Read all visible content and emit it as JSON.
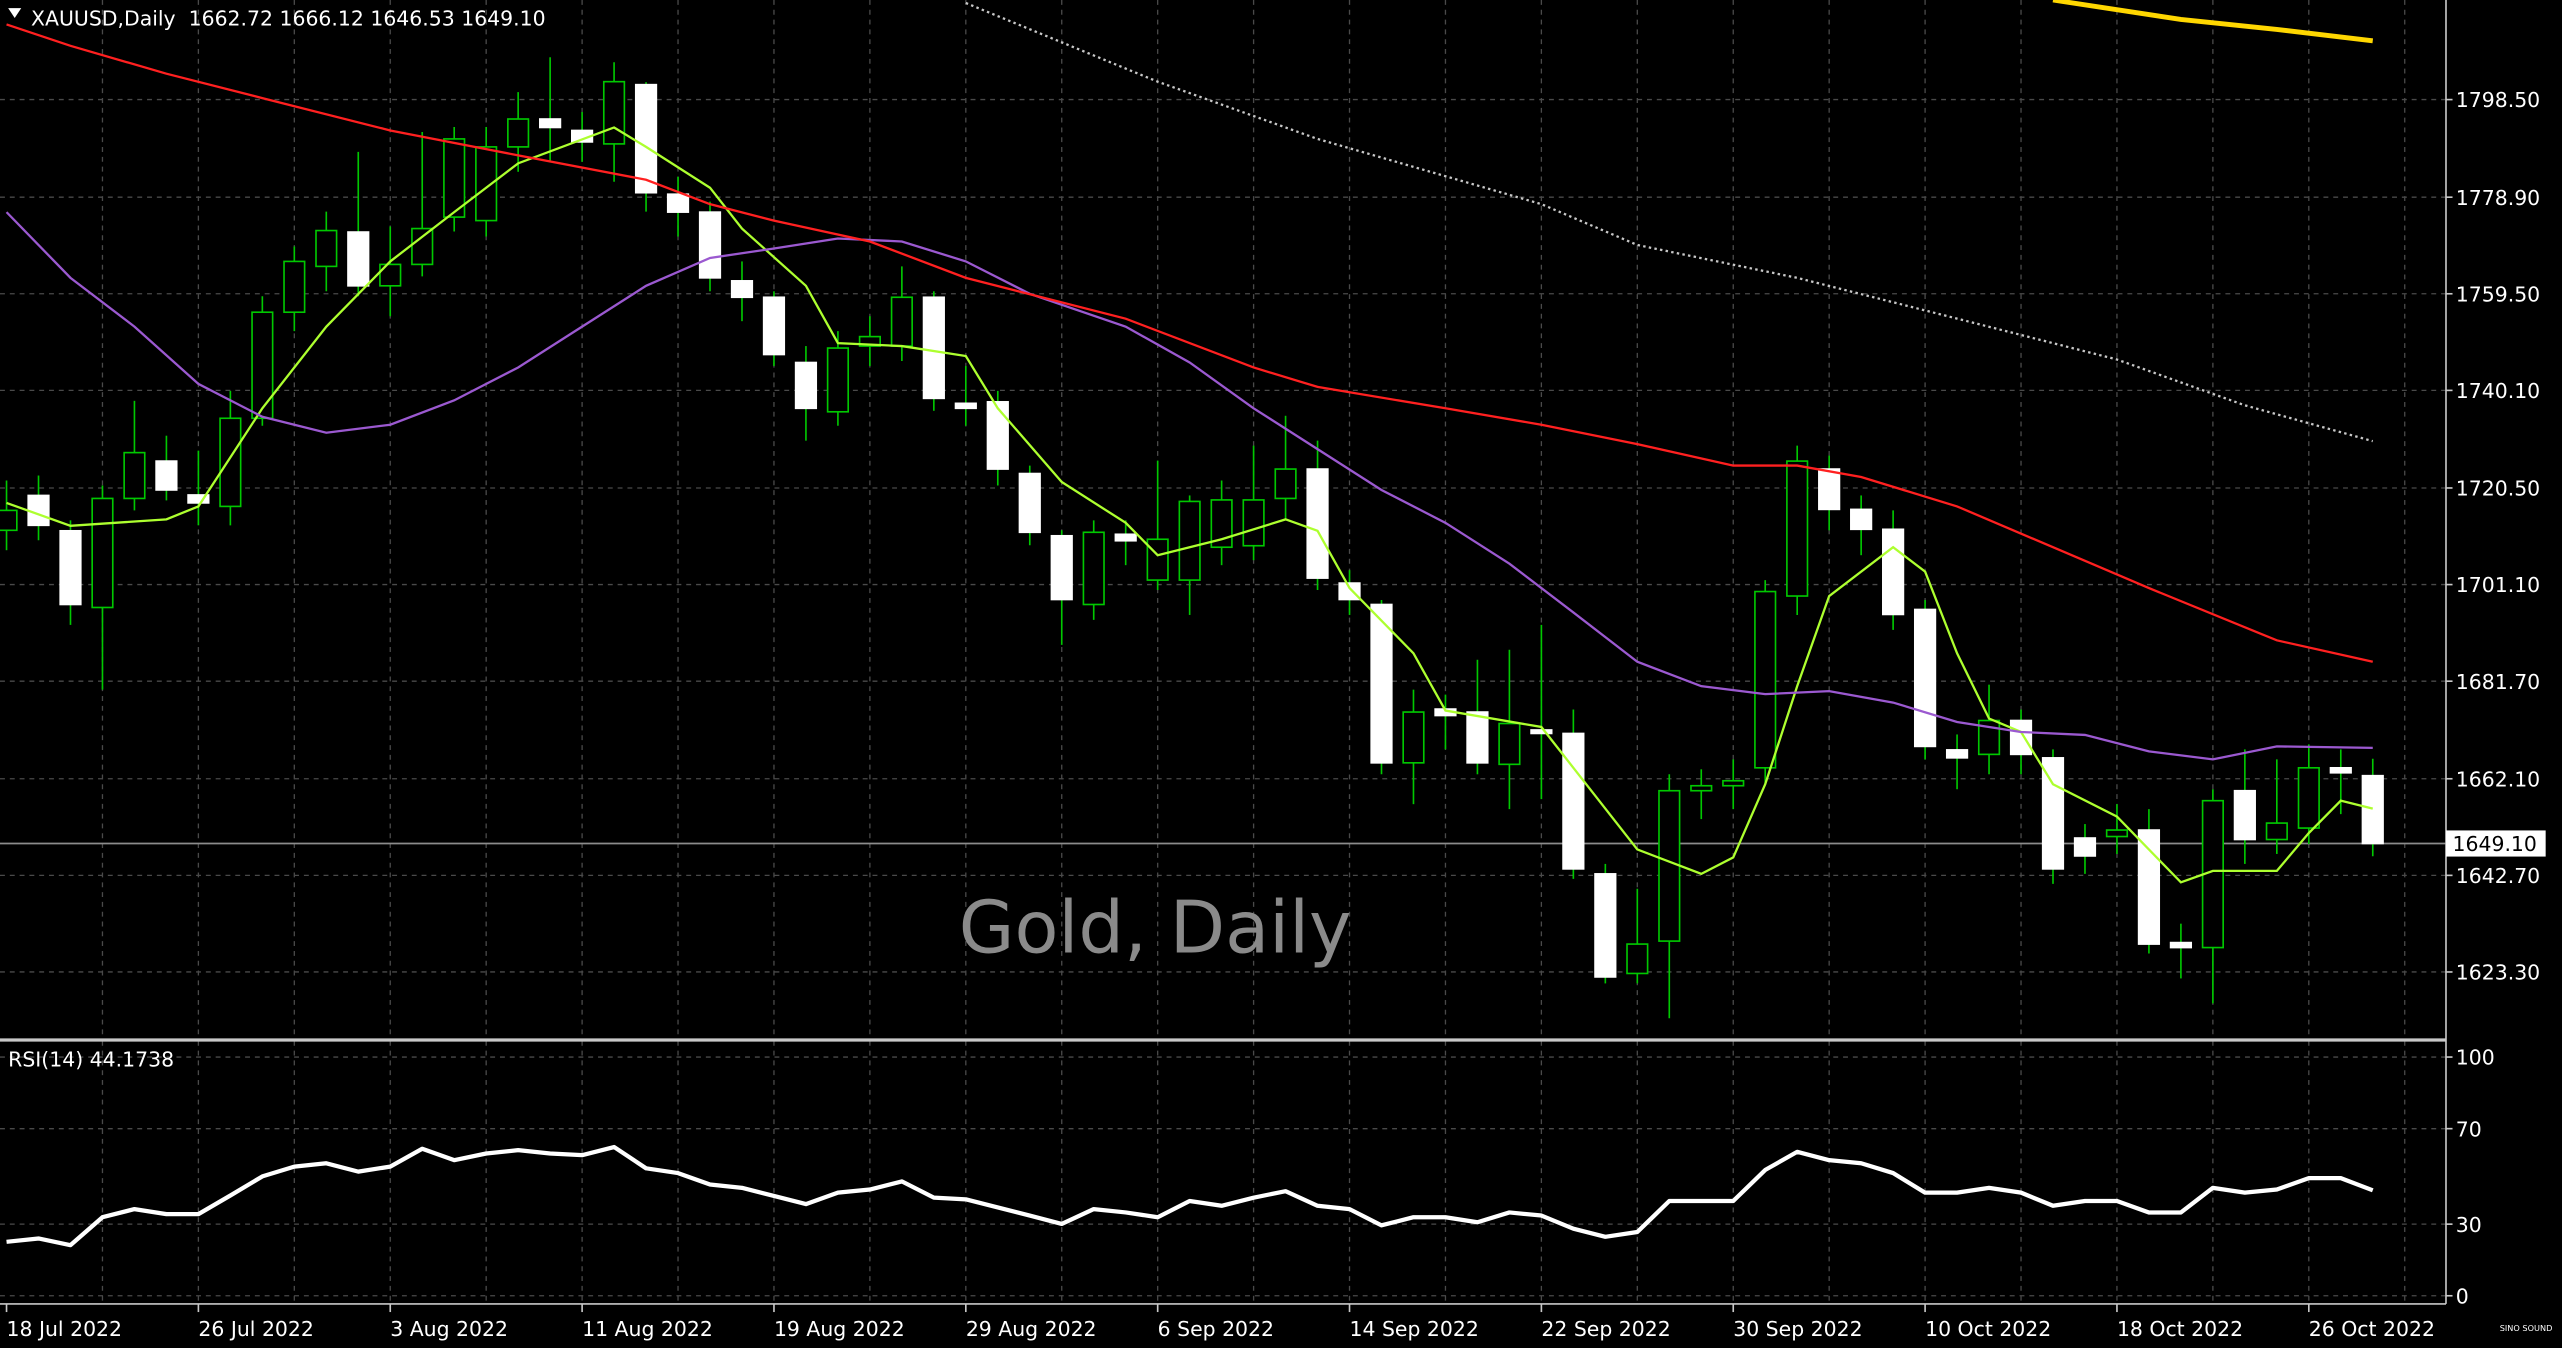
{
  "chart_data": [
    {
      "type": "candlestick",
      "title": "XAUUSD,Daily  1662.72 1666.12 1646.53 1649.10",
      "watermark": "Gold, Daily",
      "categories": [
        "18 Jul 2022",
        null,
        null,
        null,
        null,
        null,
        "26 Jul 2022",
        null,
        null,
        null,
        null,
        null,
        "3 Aug 2022",
        null,
        null,
        null,
        null,
        null,
        "11 Aug 2022",
        null,
        null,
        null,
        null,
        null,
        "19 Aug 2022",
        null,
        null,
        null,
        null,
        null,
        "29 Aug 2022",
        null,
        null,
        null,
        null,
        null,
        "6 Sep 2022",
        null,
        null,
        null,
        null,
        null,
        "14 Sep 2022",
        null,
        null,
        null,
        null,
        null,
        "22 Sep 2022",
        null,
        null,
        null,
        null,
        null,
        "30 Sep 2022",
        null,
        null,
        null,
        null,
        null,
        "10 Oct 2022",
        null,
        null,
        null,
        null,
        null,
        "18 Oct 2022",
        null,
        null,
        null,
        null,
        null,
        "26 Oct 2022",
        null,
        null
      ],
      "open": [
        1712,
        1719,
        1711.9,
        1696.5,
        1718.4,
        1725.9,
        1719.1,
        1716.8,
        1734.5,
        1755.8,
        1765,
        1771.9,
        1761.1,
        1765.4,
        1774.9,
        1774.2,
        1789,
        1794.6,
        1792.3,
        1789.6,
        1801.5,
        1779.5,
        1775.9,
        1762.1,
        1758.8,
        1745.7,
        1735.8,
        1749,
        1749,
        1758.8,
        1737.5,
        1737.8,
        1723.4,
        1710.9,
        1697.1,
        1711.2,
        1702,
        1702,
        1708.6,
        1708.9,
        1718.4,
        1724.3,
        1701.4,
        1697.1,
        1665.3,
        1676.1,
        1675.5,
        1665,
        1671.9,
        1671.2,
        1643,
        1623,
        1629.5,
        1659.7,
        1660.7,
        1664.3,
        1698.8,
        1724.3,
        1716.2,
        1712.2,
        1696.1,
        1667.9,
        1667,
        1673.8,
        1666.3,
        1650.2,
        1650.5,
        1651.8,
        1629.2,
        1628.2,
        1659.7,
        1649.9,
        1652.2,
        1664.3,
        1662.72
      ],
      "high": [
        1722,
        1723,
        1714,
        1721,
        1738,
        1731,
        1728,
        1740,
        1759,
        1769,
        1776,
        1788,
        1773,
        1792,
        1793,
        1793,
        1800,
        1807,
        1796,
        1806,
        1802,
        1783,
        1778,
        1766,
        1760,
        1749,
        1752,
        1755,
        1765,
        1760,
        1745,
        1740,
        1725,
        1712,
        1714,
        1714,
        1726,
        1719,
        1722,
        1729,
        1735,
        1730,
        1704,
        1698,
        1680,
        1679,
        1686,
        1688,
        1693,
        1676,
        1645,
        1640,
        1663,
        1664,
        1666,
        1702,
        1729,
        1727,
        1719,
        1716,
        1698,
        1671,
        1681,
        1676,
        1668,
        1653,
        1657,
        1656,
        1633,
        1660,
        1668,
        1666,
        1669,
        1668,
        1666.12
      ],
      "low": [
        1708,
        1710,
        1693,
        1680,
        1716,
        1718,
        1713,
        1713,
        1733,
        1752,
        1760,
        1759,
        1755,
        1763,
        1772,
        1771,
        1784,
        1786,
        1786,
        1782,
        1776,
        1771,
        1760,
        1754,
        1745,
        1730,
        1733,
        1745,
        1746,
        1736,
        1733,
        1721,
        1709,
        1689,
        1694,
        1705,
        1700,
        1695,
        1705,
        1706,
        1714,
        1700,
        1695,
        1663,
        1657,
        1668,
        1663,
        1656,
        1658,
        1642,
        1621,
        1621,
        1614,
        1654,
        1656,
        1661,
        1695,
        1712,
        1707,
        1692,
        1666,
        1660,
        1663,
        1663,
        1641,
        1643,
        1647,
        1627,
        1622,
        1617,
        1645,
        1647,
        1649,
        1655,
        1646.53
      ],
      "close": [
        1716,
        1713,
        1697.1,
        1718.4,
        1727.6,
        1720.1,
        1717.5,
        1734.5,
        1755.8,
        1766,
        1772.2,
        1761.1,
        1765.4,
        1772.6,
        1790.6,
        1789,
        1794.6,
        1792.9,
        1790,
        1802.1,
        1779.8,
        1775.9,
        1762.7,
        1758.8,
        1747.3,
        1736.5,
        1748.6,
        1750.9,
        1758.8,
        1738.5,
        1736.5,
        1724.3,
        1711.6,
        1698.1,
        1711.6,
        1709.9,
        1710.2,
        1717.8,
        1718.1,
        1718.1,
        1724.3,
        1702.4,
        1698.1,
        1665.3,
        1675.5,
        1674.8,
        1665.3,
        1673.2,
        1671.2,
        1644,
        1622.3,
        1628.9,
        1659.7,
        1660.7,
        1661.7,
        1699.7,
        1725.9,
        1716.2,
        1712.2,
        1695.1,
        1668.6,
        1666.3,
        1673.8,
        1667,
        1644,
        1646.6,
        1651.8,
        1628.9,
        1628.2,
        1657.7,
        1649.9,
        1653.2,
        1664.3,
        1663.3,
        1649.1
      ],
      "up_color": "#000000",
      "down_color": "#ffffff",
      "wick_color": "#00c800",
      "ylim": [
        1609.8,
        1818.5
      ],
      "yticks": [
        {
          "value": 1798.5,
          "label": "1798.50"
        },
        {
          "value": 1778.9,
          "label": "1778.90"
        },
        {
          "value": 1759.5,
          "label": "1759.50"
        },
        {
          "value": 1740.1,
          "label": "1740.10"
        },
        {
          "value": 1720.5,
          "label": "1720.50"
        },
        {
          "value": 1701.1,
          "label": "1701.10"
        },
        {
          "value": 1681.7,
          "label": "1681.70"
        },
        {
          "value": 1662.1,
          "label": "1662.10"
        },
        {
          "value": 1642.7,
          "label": "1642.70"
        },
        {
          "value": 1623.3,
          "label": "1623.30"
        }
      ],
      "grid": true,
      "price_line": {
        "value": 1649.1,
        "label": "1649.10"
      },
      "series": [
        {
          "color": "#adff2f",
          "x": [
            0,
            2,
            5,
            6,
            8,
            10,
            12,
            14,
            16,
            19,
            20,
            22,
            23,
            25,
            26,
            28,
            30,
            31,
            33,
            35,
            36,
            38,
            40,
            41,
            42,
            44,
            45,
            48,
            49,
            51,
            53,
            54,
            55,
            56,
            57,
            59,
            60,
            61,
            62,
            63,
            64,
            66,
            68,
            69,
            71,
            72,
            73,
            74
          ],
          "values": [
            1717.5,
            1712.9,
            1714.2,
            1716.8,
            1736.5,
            1752.9,
            1766,
            1775.9,
            1785.7,
            1792.9,
            1789,
            1780.8,
            1772.6,
            1761.1,
            1749.6,
            1749,
            1747,
            1736.5,
            1721.7,
            1713.5,
            1707,
            1710.2,
            1714.2,
            1711.9,
            1700.4,
            1687.3,
            1675.8,
            1672.5,
            1664.3,
            1647.9,
            1643,
            1646.3,
            1661,
            1680.7,
            1698.8,
            1708.6,
            1703.7,
            1687.3,
            1674.2,
            1671.5,
            1661,
            1654.5,
            1641.3,
            1643.6,
            1643.6,
            1651.2,
            1657.7,
            1656.1
          ]
        },
        {
          "color": "#9b59d0",
          "x": [
            0,
            2,
            4,
            6,
            8,
            10,
            12,
            14,
            16,
            18,
            20,
            22,
            24,
            26,
            28,
            30,
            32,
            35,
            37,
            39,
            41,
            43,
            45,
            47,
            49,
            51,
            53,
            55,
            57,
            59,
            61,
            63,
            65,
            67,
            69,
            71,
            74
          ],
          "values": [
            1775.9,
            1762.7,
            1752.9,
            1741.4,
            1734.8,
            1731.6,
            1733.2,
            1738.1,
            1744.7,
            1752.9,
            1761.1,
            1766.7,
            1768.6,
            1770.6,
            1770,
            1766,
            1759.5,
            1752.9,
            1745.7,
            1736.5,
            1728.3,
            1720.1,
            1713.5,
            1705.3,
            1695.5,
            1685.6,
            1680.7,
            1679.1,
            1679.7,
            1677.4,
            1673.5,
            1671.5,
            1670.9,
            1667.6,
            1666,
            1668.6,
            1668.3
          ]
        },
        {
          "color": "#ff2020",
          "x": [
            0,
            2,
            5,
            8,
            12,
            16,
            20,
            22,
            24,
            27,
            30,
            35,
            39,
            41,
            45,
            48,
            51,
            54,
            56,
            58,
            61,
            64,
            67,
            71,
            74
          ],
          "values": [
            1813.6,
            1809.3,
            1803.7,
            1798.8,
            1792.3,
            1787.3,
            1782.4,
            1777.5,
            1774.2,
            1770,
            1762.7,
            1754.5,
            1744.7,
            1740.8,
            1736.5,
            1733.2,
            1729.3,
            1725,
            1725,
            1722.7,
            1716.8,
            1708.6,
            1700.4,
            1689.9,
            1685.6
          ]
        },
        {
          "color": "#c8c8c8",
          "style": "dotted",
          "x": [
            30,
            36,
            41,
            48,
            51,
            56,
            59,
            66,
            70,
            74
          ],
          "values": [
            1817.9,
            1802.1,
            1790.6,
            1777.5,
            1769.3,
            1762.7,
            1757.8,
            1746.3,
            1737.1,
            1729.9
          ]
        },
        {
          "color": "#ffd700",
          "width": 3,
          "x": [
            64,
            68,
            71,
            74
          ],
          "values": [
            1818.5,
            1814.6,
            1812.6,
            1810.3
          ]
        }
      ]
    },
    {
      "type": "line",
      "title": "RSI(14) 44.1738",
      "color": "#ffffff",
      "values": [
        22.6,
        24,
        21.2,
        32.9,
        36.3,
        34.2,
        34.2,
        42,
        50,
        54.1,
        55.5,
        52,
        54.1,
        61.6,
        56.8,
        59.6,
        61,
        59.6,
        58.9,
        62.3,
        53.4,
        51.4,
        46.6,
        45.2,
        41.8,
        38.4,
        43.2,
        44.5,
        47.9,
        41.1,
        40.4,
        37,
        33.6,
        30.1,
        36.3,
        34.9,
        32.9,
        39.7,
        37.7,
        41.1,
        43.8,
        37.7,
        36.3,
        29.5,
        32.9,
        32.9,
        30.8,
        34.9,
        33.6,
        28.1,
        24.7,
        26.7,
        39.7,
        39.7,
        39.7,
        52.7,
        60.3,
        56.8,
        55.5,
        51.4,
        43.2,
        43.2,
        45.2,
        43.2,
        37.7,
        39.7,
        39.7,
        34.9,
        34.9,
        45.2,
        43.2,
        44.5,
        49.3,
        49.3,
        44.1738
      ],
      "ylim": [
        -3.4,
        106.8
      ],
      "yticks": [
        100,
        70,
        30,
        0
      ],
      "grid": true
    }
  ],
  "logo": "SINO SOUND"
}
